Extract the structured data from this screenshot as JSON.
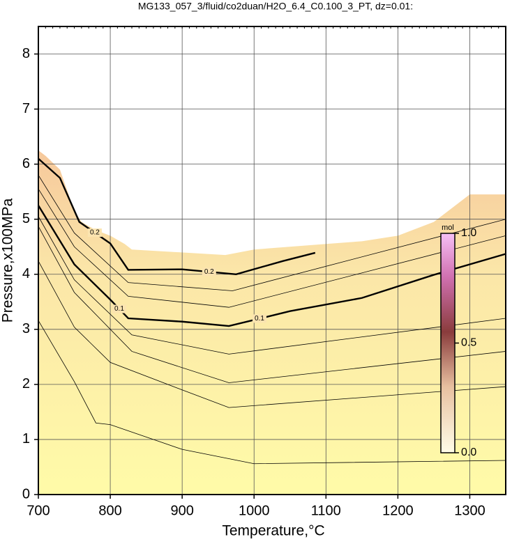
{
  "chart_data": {
    "type": "contour",
    "title": "MG133_057_3/fluid/co2duan/H2O_6.4_C0.100_3_PT, dz=0.01:",
    "x_label": "Temperature,°C",
    "y_label": "Pressure,x100MPa",
    "xlim": [
      700,
      1350
    ],
    "ylim": [
      0,
      8.5
    ],
    "xticks": [
      700,
      800,
      900,
      1000,
      1100,
      1200,
      1300
    ],
    "yticks": [
      0,
      1,
      2,
      3,
      4,
      5,
      6,
      7,
      8
    ],
    "grid": true,
    "region": {
      "x": [
        700,
        710,
        730,
        750,
        760,
        780,
        800,
        820,
        830,
        960,
        1000,
        1100,
        1150,
        1200,
        1250,
        1300,
        1350
      ],
      "y": [
        6.25,
        6.15,
        5.9,
        5.15,
        4.95,
        4.8,
        4.7,
        4.55,
        4.45,
        4.35,
        4.45,
        4.55,
        4.6,
        4.7,
        4.95,
        5.45,
        5.45
      ]
    },
    "series": [
      {
        "name": "c1",
        "bold": false,
        "x": [
          700,
          750,
          780,
          800,
          900,
          1000,
          1350
        ],
        "y": [
          3.16,
          2.05,
          1.3,
          1.27,
          0.82,
          0.56,
          0.62
        ]
      },
      {
        "name": "c2",
        "bold": false,
        "x": [
          700,
          750,
          800,
          900,
          965,
          1350
        ],
        "y": [
          4.24,
          3.04,
          2.4,
          1.9,
          1.58,
          1.96
        ]
      },
      {
        "name": "c3",
        "bold": false,
        "x": [
          700,
          750,
          830,
          965,
          1350
        ],
        "y": [
          4.87,
          3.67,
          2.6,
          2.03,
          2.6
        ]
      },
      {
        "name": "c4",
        "bold": false,
        "x": [
          700,
          750,
          830,
          965,
          1350
        ],
        "y": [
          5.05,
          3.9,
          2.9,
          2.55,
          3.2
        ]
      },
      {
        "name": "c5",
        "bold": true,
        "level": 0.1,
        "x": [
          700,
          750,
          800,
          825,
          900,
          965,
          1050,
          1150,
          1250,
          1350
        ],
        "y": [
          5.25,
          4.18,
          3.54,
          3.2,
          3.14,
          3.06,
          3.33,
          3.57,
          3.99,
          4.37
        ]
      },
      {
        "name": "c6",
        "bold": false,
        "x": [
          700,
          750,
          825,
          965,
          1350
        ],
        "y": [
          5.55,
          4.5,
          3.6,
          3.4,
          4.7
        ]
      },
      {
        "name": "c7",
        "bold": false,
        "x": [
          700,
          750,
          825,
          970,
          1350
        ],
        "y": [
          5.8,
          4.75,
          3.85,
          3.7,
          5.0
        ]
      },
      {
        "name": "c8",
        "bold": true,
        "level": 0.2,
        "x": [
          700,
          730,
          757,
          800,
          825,
          900,
          975,
          1040,
          1085
        ],
        "y": [
          6.1,
          5.75,
          4.95,
          4.56,
          4.08,
          4.09,
          4.0,
          4.24,
          4.39
        ]
      }
    ],
    "colorbar": {
      "unit": "mol",
      "lim": [
        0,
        1
      ],
      "ticks": [
        {
          "value": 0,
          "label": "0.0"
        },
        0.5,
        {
          "value": 1,
          "label": "1.0"
        }
      ]
    }
  }
}
